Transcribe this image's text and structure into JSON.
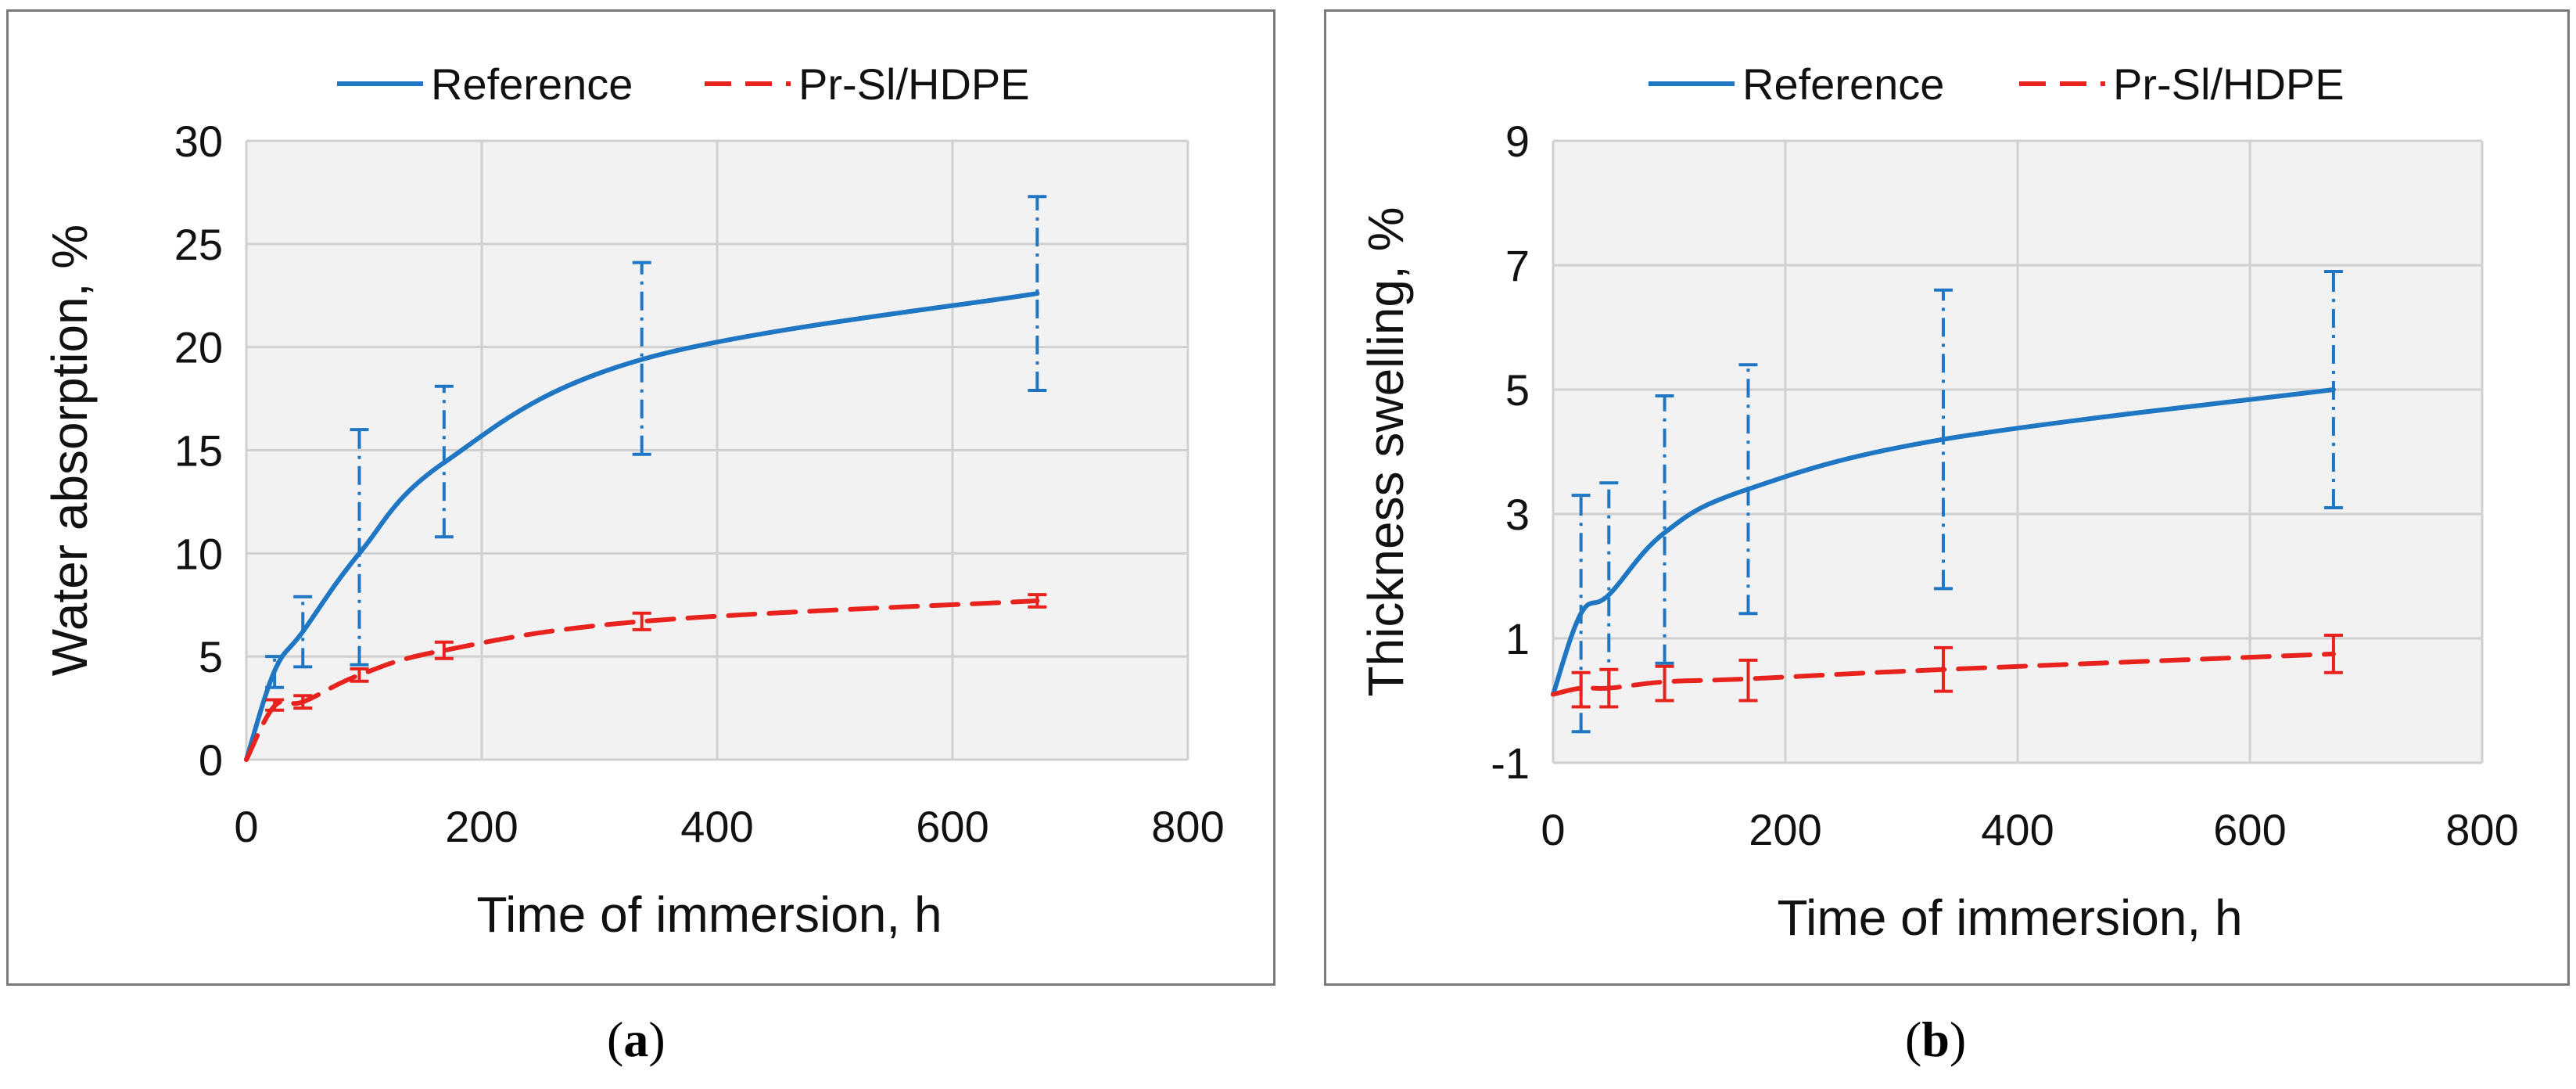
{
  "chart_data": [
    {
      "type": "line",
      "panel_label": "a",
      "xlabel": "Time of immersion, h",
      "ylabel": "Water absorption, %",
      "xlim": [
        0,
        800
      ],
      "ylim": [
        0,
        30
      ],
      "xticks": [
        0,
        200,
        400,
        600,
        800
      ],
      "yticks": [
        0,
        5,
        10,
        15,
        20,
        25,
        30
      ],
      "grid": true,
      "legend_position": "top",
      "x": [
        0,
        24,
        48,
        96,
        168,
        336,
        672
      ],
      "series": [
        {
          "name": "Reference",
          "color": "#1f77c4",
          "style": "solid",
          "values": [
            0,
            4.3,
            6.2,
            10.0,
            14.4,
            19.4,
            22.6
          ],
          "err_low": [
            0,
            3.5,
            4.5,
            4.6,
            10.8,
            14.8,
            17.9
          ],
          "err_high": [
            0,
            5.0,
            7.9,
            16.0,
            18.1,
            24.1,
            27.3
          ]
        },
        {
          "name": "Pr-Sl/HDPE",
          "color": "#e8231e",
          "style": "dashed",
          "values": [
            0,
            2.6,
            2.8,
            4.1,
            5.3,
            6.7,
            7.7
          ],
          "err_low": [
            0,
            2.4,
            2.5,
            3.8,
            4.9,
            6.3,
            7.4
          ],
          "err_high": [
            0,
            2.9,
            3.1,
            4.4,
            5.7,
            7.1,
            8.0
          ]
        }
      ]
    },
    {
      "type": "line",
      "panel_label": "b",
      "xlabel": "Time of immersion, h",
      "ylabel": "Thickness swelling, %",
      "xlim": [
        0,
        800
      ],
      "ylim": [
        -1,
        9
      ],
      "xticks": [
        0,
        200,
        400,
        600,
        800
      ],
      "yticks": [
        -1,
        1,
        3,
        5,
        7,
        9
      ],
      "grid": true,
      "legend_position": "top",
      "x": [
        0,
        24,
        48,
        96,
        168,
        336,
        672
      ],
      "series": [
        {
          "name": "Reference",
          "color": "#1f77c4",
          "style": "solid",
          "values": [
            0.1,
            1.4,
            1.7,
            2.7,
            3.4,
            4.2,
            5.0
          ],
          "err_low": [
            0.1,
            -0.5,
            0.2,
            0.6,
            1.4,
            1.8,
            3.1
          ],
          "err_high": [
            0.1,
            3.3,
            3.5,
            4.9,
            5.4,
            6.6,
            6.9
          ]
        },
        {
          "name": "Pr-Sl/HDPE",
          "color": "#e8231e",
          "style": "dashed",
          "values": [
            0.1,
            0.2,
            0.2,
            0.3,
            0.35,
            0.5,
            0.75
          ],
          "err_low": [
            0.1,
            -0.1,
            -0.1,
            0.0,
            0.0,
            0.15,
            0.45
          ],
          "err_high": [
            0.1,
            0.45,
            0.5,
            0.55,
            0.65,
            0.85,
            1.05
          ]
        }
      ]
    }
  ],
  "captions": {
    "a": "a",
    "b": "b"
  }
}
